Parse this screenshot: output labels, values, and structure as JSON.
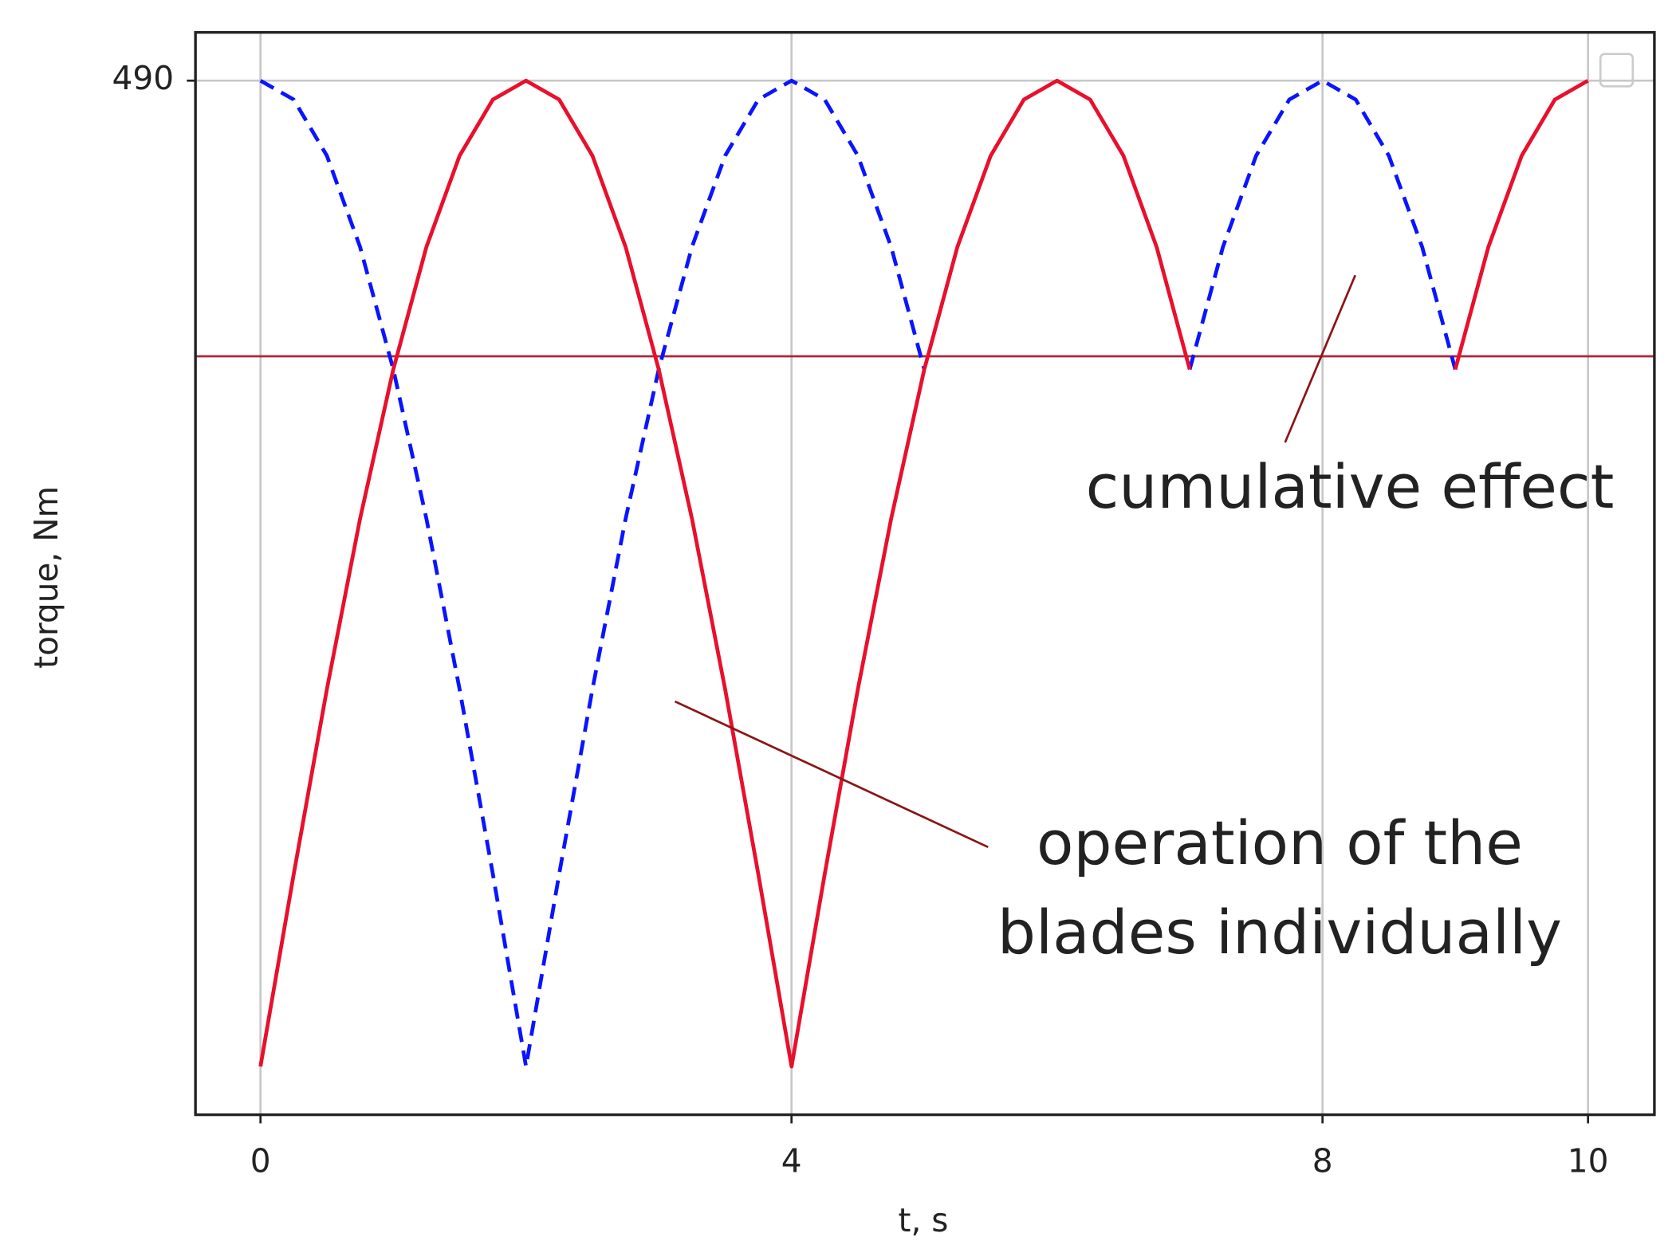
{
  "chart_data": {
    "type": "line",
    "xlabel": "t, s",
    "ylabel": "torque, Nm",
    "x": [
      0,
      0.25,
      0.5,
      0.75,
      1,
      1.25,
      1.5,
      1.75,
      2,
      2.25,
      2.5,
      2.75,
      3,
      3.25,
      3.5,
      3.75,
      4,
      4.25,
      4.5,
      4.75,
      5,
      5.25,
      5.5,
      5.75,
      6,
      6.25,
      6.5,
      6.75,
      7,
      7.25,
      7.5,
      7.75,
      8,
      8.25,
      8.5,
      8.75,
      9,
      9.25,
      9.5,
      9.75,
      10
    ],
    "series": [
      {
        "color": "#0a14ff",
        "dashed": true,
        "values": [
          490,
          480.6,
          452.7,
          407.4,
          346.5,
          272.2,
          187.5,
          95.6,
          0,
          95.6,
          187.5,
          272.2,
          346.5,
          407.4,
          452.7,
          480.6,
          490,
          480.6,
          452.7,
          407.4,
          346.5,
          null,
          null,
          null,
          null,
          null,
          null,
          null,
          346.5,
          407.4,
          452.7,
          480.6,
          490,
          480.6,
          452.7,
          407.4,
          346.5,
          null,
          null,
          null,
          null
        ]
      },
      {
        "color": "#e8102c",
        "dashed": false,
        "values": [
          0,
          95.6,
          187.5,
          272.2,
          346.5,
          407.4,
          452.7,
          480.6,
          490,
          480.6,
          452.7,
          407.4,
          346.5,
          272.2,
          187.5,
          95.6,
          0,
          95.6,
          187.5,
          272.2,
          346.5,
          407.4,
          452.7,
          480.6,
          490,
          480.6,
          452.7,
          407.4,
          346.5,
          null,
          null,
          null,
          null,
          null,
          null,
          null,
          346.5,
          407.4,
          452.7,
          480.6,
          490
        ]
      }
    ],
    "hline": {
      "value": 353,
      "color": "#a8283a"
    },
    "xlim": [
      -0.49,
      10.5
    ],
    "ylim": [
      -24,
      514
    ],
    "xticks": [
      0,
      4,
      8,
      10
    ],
    "yticks": [
      490
    ],
    "grid": true,
    "annotations": [
      {
        "text": [
          "cumulative effect"
        ],
        "color": "#8b1414"
      },
      {
        "text": [
          "operation of the",
          "blades individually"
        ],
        "color": "#8b1414"
      }
    ]
  }
}
